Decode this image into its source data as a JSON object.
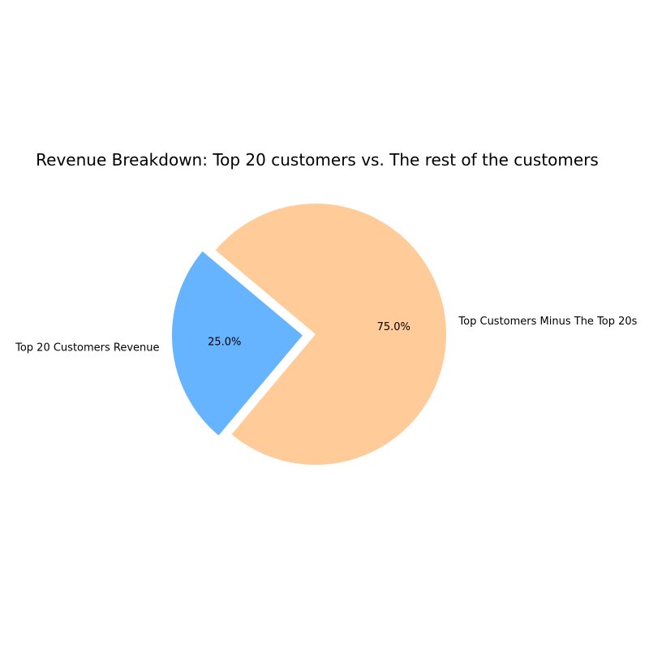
{
  "chart_data": {
    "type": "pie",
    "title": "Revenue Breakdown: Top 20 customers vs. The rest of the customers",
    "slices": [
      {
        "label": "Top 20 Customers Revenue",
        "value": 25.0,
        "pct_label": "25.0%",
        "color": "#66b3ff",
        "exploded": true
      },
      {
        "label": "Top Customers Minus The Top 20s",
        "value": 75.0,
        "pct_label": "75.0%",
        "color": "#ffcc99",
        "exploded": false
      }
    ],
    "start_angle_deg": 140,
    "legend": "none"
  }
}
